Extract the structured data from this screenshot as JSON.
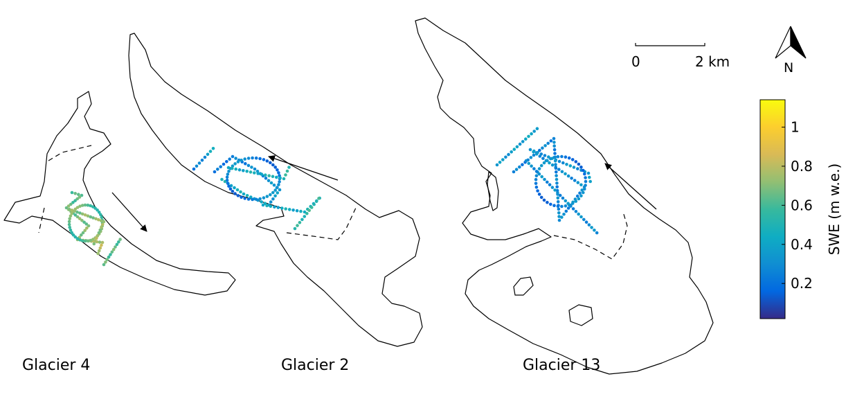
{
  "glaciers": [
    {
      "label": "Glacier 4"
    },
    {
      "label": "Glacier 2"
    },
    {
      "label": "Glacier 13"
    }
  ],
  "scalebar": {
    "start": "0",
    "end": "2 km"
  },
  "north": {
    "label": "N"
  },
  "colorbar": {
    "title": "SWE (m w.e.)",
    "ticks": [
      "0.2",
      "0.4",
      "0.6",
      "0.8",
      "1"
    ],
    "tick_values": [
      0.2,
      0.4,
      0.6,
      0.8,
      1.0
    ],
    "range": [
      0.02,
      1.14
    ],
    "colors": [
      "#352a87",
      "#0268e1",
      "#108ed2",
      "#0fadc3",
      "#38b99d",
      "#92bf73",
      "#d9ba56",
      "#fcce2e",
      "#f9fb0e"
    ]
  },
  "icons": {
    "flow_arrow": "flow-arrow-icon",
    "north_arrow": "north-arrow-icon"
  }
}
